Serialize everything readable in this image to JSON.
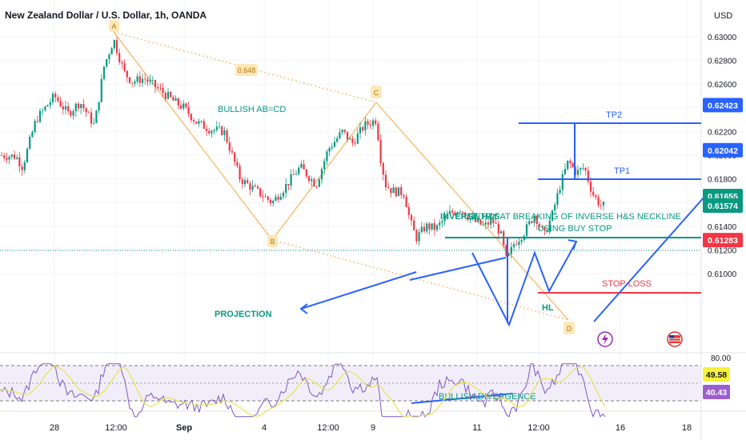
{
  "header": {
    "title": "New Zealand Dollar / U.S. Dollar, 1h, OANDA",
    "currency": "USD"
  },
  "chart_data": {
    "type": "candlestick",
    "price_ticks": [
      "0.63000",
      "0.62800",
      "0.62600",
      "0.62400",
      "0.62200",
      "0.62000",
      "0.61800",
      "0.61600",
      "0.61400",
      "0.61200",
      "0.61000"
    ],
    "x_ticks": [
      "28",
      "12:00",
      "Sep",
      "4",
      "12:00",
      "9",
      "11",
      "12:00",
      "16",
      "18"
    ],
    "rsi_ticks": [
      "80.00"
    ],
    "price_badges": [
      {
        "label": "0.62423",
        "kind": "tp2",
        "color": "#2962ff"
      },
      {
        "label": "0.62042",
        "kind": "tp1",
        "color": "#2962ff"
      },
      {
        "label": "0.61655",
        "kind": "entry",
        "color": "#089981"
      },
      {
        "label": "0.61574",
        "kind": "last",
        "color": "#089981"
      },
      {
        "label": "0.61283",
        "kind": "stop",
        "color": "#f23645"
      }
    ],
    "rsi_badges": [
      {
        "label": "49.58",
        "color": "#f7f13a",
        "text_color": "#131722"
      },
      {
        "label": "40.43",
        "color": "#9c5fcf",
        "text_color": "#ffffff"
      }
    ],
    "pattern_points": [
      {
        "label": "A",
        "price": 0.6302
      },
      {
        "label": "B",
        "price": 0.6151
      },
      {
        "label": "C",
        "price": 0.6255
      },
      {
        "label": "D",
        "price": 0.6103
      }
    ],
    "ratio_label": "0.648",
    "levels": {
      "tp2": 0.62423,
      "tp1": 0.62042,
      "entry": 0.61655,
      "last": 0.61574,
      "stop": 0.61283
    },
    "colors": {
      "up": "#089981",
      "down": "#f23645",
      "blue": "#2962ff",
      "orange": "#f5c27a",
      "green_text": "#089981",
      "red_text": "#f23645",
      "rsi_line": "#7e57c2",
      "rsi_ma": "#e8e350"
    }
  },
  "annotations": {
    "bullish_abcd": "BULLISH AB=CD",
    "inverse_hs": "INVERSE H&S",
    "entry_text_1": "ENTRY AT BREAKING OF INVERSE H&S NECKLINE",
    "entry_text_2": "USING BUY STOP",
    "tp1": "TP1",
    "tp2": "TP2",
    "stop_loss": "STOP LOSS",
    "hl": "HL",
    "projection": "PROJECTION",
    "bullish_divergence": "BULLISH DIVERGENCE"
  }
}
